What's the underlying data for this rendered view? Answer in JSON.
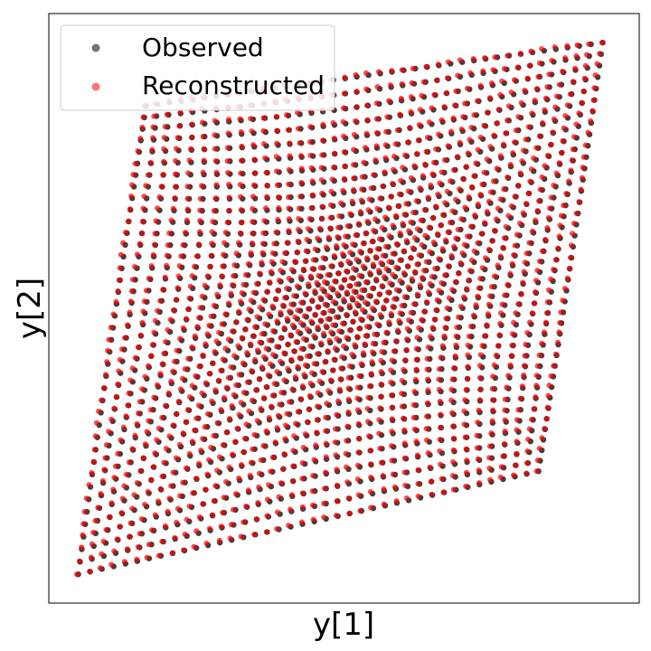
{
  "chart_data": {
    "type": "scatter",
    "title": "",
    "xlabel": "y[1]",
    "ylabel": "y[2]",
    "xlim": [
      -1.15,
      1.15
    ],
    "ylim": [
      -1.15,
      1.15
    ],
    "grid": false,
    "ticks_visible": false,
    "legend_placement": "upper-left",
    "series": [
      {
        "name": "Observed",
        "color": "#000000",
        "alpha": 0.55
      },
      {
        "name": "Reconstructed",
        "color": "#ff0000",
        "alpha": 0.55
      }
    ],
    "grid_shape": {
      "rows": 40,
      "cols": 40
    }
  },
  "colors": {
    "observed": "#000000",
    "reconstructed": "#ff0000",
    "frame": "#000000"
  }
}
